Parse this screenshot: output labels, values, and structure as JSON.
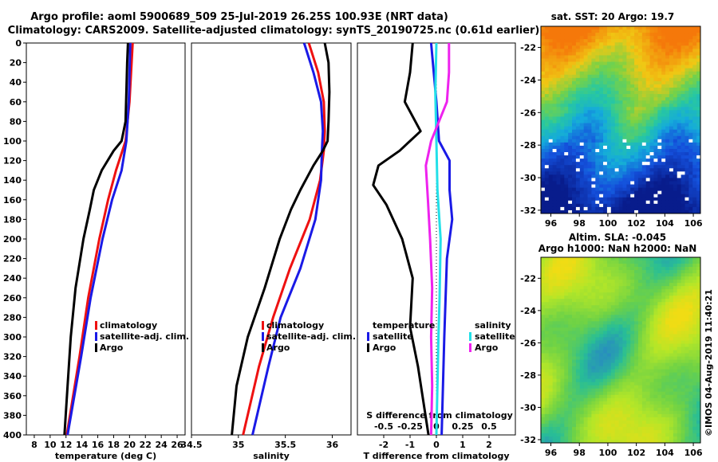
{
  "title": {
    "line1": "Argo profile: aoml 5900689_509 25-Jul-2019 26.25S 100.93E (NRT data)",
    "line2": "Climatology: CARS2009. Satellite-adjusted climatology: synTS_20190725.nc (0.61d earlier)"
  },
  "colors": {
    "climatology": "#ee1111",
    "satellite": "#1a1ae6",
    "argo": "#000000",
    "sat_salinity": "#22e0e8",
    "argo_salinity": "#ee22ee"
  },
  "chart_data": [
    {
      "type": "line",
      "name": "temperature-profile",
      "xlabel": "temperature (deg C)",
      "ylabel": "",
      "xlim": [
        7,
        27
      ],
      "ylim": [
        400,
        0
      ],
      "xticks": [
        8,
        10,
        12,
        14,
        16,
        18,
        20,
        22,
        24,
        26
      ],
      "yticks": [
        0,
        20,
        40,
        60,
        80,
        100,
        120,
        140,
        160,
        180,
        200,
        220,
        240,
        260,
        280,
        300,
        320,
        340,
        360,
        380,
        400
      ],
      "legend": [
        "climatology",
        "satellite-adj. clim.",
        "Argo"
      ],
      "legend_position": "lower-right",
      "series": [
        {
          "name": "climatology",
          "depth": [
            0,
            60,
            100,
            130,
            160,
            200,
            260,
            320,
            400
          ],
          "values": [
            20.4,
            20.0,
            19.5,
            18.3,
            17.3,
            16.2,
            14.8,
            13.7,
            12.1
          ]
        },
        {
          "name": "satellite-adj. clim.",
          "depth": [
            0,
            60,
            100,
            130,
            160,
            200,
            260,
            320,
            400
          ],
          "values": [
            20.1,
            19.9,
            19.6,
            19.0,
            17.8,
            16.6,
            15.1,
            13.9,
            12.2
          ]
        },
        {
          "name": "Argo",
          "depth": [
            0,
            20,
            50,
            80,
            100,
            110,
            130,
            150,
            170,
            200,
            250,
            300,
            350,
            400
          ],
          "values": [
            19.8,
            19.7,
            19.6,
            19.5,
            19.0,
            18.0,
            16.5,
            15.5,
            15.0,
            14.2,
            13.2,
            12.6,
            12.2,
            11.8
          ]
        }
      ]
    },
    {
      "type": "line",
      "name": "salinity-profile",
      "xlabel": "salinity",
      "ylabel": "",
      "xlim": [
        34.5,
        36.2
      ],
      "ylim": [
        400,
        0
      ],
      "xticks": [
        34.5,
        35,
        35.5,
        36
      ],
      "legend": [
        "climatology",
        "satellite-adj. clim.",
        "Argo"
      ],
      "legend_position": "lower-right",
      "series": [
        {
          "name": "climatology",
          "depth": [
            0,
            30,
            60,
            90,
            110,
            140,
            180,
            230,
            280,
            330,
            400
          ],
          "values": [
            35.75,
            35.85,
            35.91,
            35.92,
            35.91,
            35.87,
            35.76,
            35.55,
            35.37,
            35.22,
            35.05
          ]
        },
        {
          "name": "satellite-adj. clim.",
          "depth": [
            0,
            30,
            60,
            90,
            110,
            140,
            180,
            230,
            280,
            330,
            400
          ],
          "values": [
            35.7,
            35.8,
            35.88,
            35.9,
            35.89,
            35.88,
            35.82,
            35.66,
            35.45,
            35.32,
            35.15
          ]
        },
        {
          "name": "Argo",
          "depth": [
            0,
            20,
            50,
            80,
            100,
            110,
            125,
            150,
            170,
            200,
            250,
            300,
            350,
            400
          ],
          "values": [
            35.92,
            35.96,
            35.97,
            35.96,
            35.95,
            35.9,
            35.8,
            35.66,
            35.56,
            35.44,
            35.28,
            35.1,
            34.98,
            34.93
          ]
        }
      ]
    },
    {
      "type": "line",
      "name": "difference-profile",
      "xlabel": "T difference from climatology",
      "x2label": "S difference from climatology",
      "xlim": [
        -3,
        3
      ],
      "ylim": [
        400,
        0
      ],
      "xticks": [
        -2,
        -1,
        0,
        1,
        2
      ],
      "x2ticks": [
        -0.5,
        -0.25,
        0,
        0.25,
        0.5
      ],
      "x2tick_labels": [
        "-0.5",
        "-0.25",
        "0",
        "0.25",
        "0.5"
      ],
      "legend_groups": [
        {
          "title": "temperature",
          "entries": [
            "satellite",
            "Argo"
          ]
        },
        {
          "title": "salinity",
          "entries": [
            "satellite",
            "Argo"
          ]
        }
      ],
      "series": [
        {
          "name": "temperature satellite",
          "depth": [
            0,
            30,
            60,
            100,
            120,
            150,
            180,
            220,
            300,
            400
          ],
          "values": [
            -0.2,
            -0.1,
            0.0,
            0.1,
            0.5,
            0.5,
            0.6,
            0.4,
            0.3,
            0.2
          ]
        },
        {
          "name": "temperature Argo",
          "depth": [
            0,
            30,
            60,
            90,
            110,
            125,
            145,
            165,
            200,
            240,
            290,
            330,
            400
          ],
          "values": [
            -0.9,
            -1.0,
            -1.2,
            -0.6,
            -1.4,
            -2.2,
            -2.4,
            -1.9,
            -1.3,
            -0.9,
            -1.0,
            -0.7,
            -0.3
          ]
        },
        {
          "name": "salinity satellite",
          "depth": [
            0,
            50,
            100,
            150,
            200,
            260,
            300,
            400
          ],
          "values": [
            0.0,
            -0.01,
            0.0,
            0.01,
            0.04,
            0.03,
            0.02,
            0.0
          ]
        },
        {
          "name": "salinity Argo",
          "depth": [
            0,
            30,
            60,
            100,
            125,
            160,
            200,
            250,
            300,
            350,
            400
          ],
          "values": [
            0.12,
            0.12,
            0.1,
            -0.05,
            -0.1,
            -0.08,
            -0.06,
            -0.04,
            -0.05,
            -0.04,
            -0.05
          ]
        }
      ]
    },
    {
      "type": "heatmap",
      "name": "sst-map",
      "title": "sat. SST: 20 Argo: 19.7",
      "xlim": [
        95.3,
        106.5
      ],
      "ylim": [
        -32.2,
        -20.7
      ],
      "xticks": [
        96,
        98,
        100,
        102,
        104,
        106
      ],
      "yticks": [
        -22,
        -24,
        -26,
        -28,
        -30,
        -32
      ]
    },
    {
      "type": "heatmap",
      "name": "sla-map",
      "title": "Altim. SLA: -0.045",
      "subtitle": "Argo h1000: NaN h2000: NaN",
      "xlim": [
        95.3,
        106.5
      ],
      "ylim": [
        -32.2,
        -20.7
      ],
      "xticks": [
        96,
        98,
        100,
        102,
        104,
        106
      ],
      "yticks": [
        -22,
        -24,
        -26,
        -28,
        -30,
        -32
      ]
    }
  ],
  "legend_labels": {
    "climatology": "climatology",
    "satellite_adj": "satellite-adj. clim.",
    "argo": "Argo",
    "temperature": "temperature",
    "salinity": "salinity",
    "satellite": "satellite"
  },
  "credit": "©IMOS 04-Aug-2019 11:40:21"
}
